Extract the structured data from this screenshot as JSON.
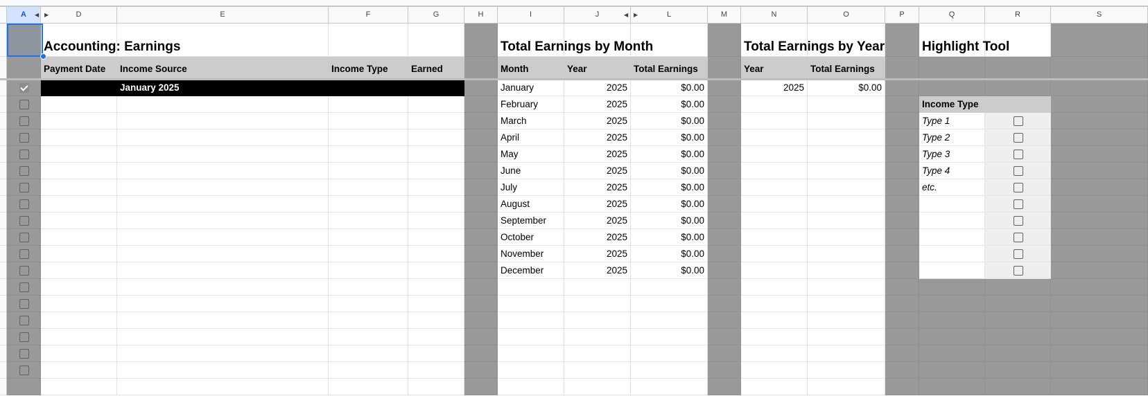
{
  "columns": [
    "A",
    "D",
    "E",
    "F",
    "G",
    "H",
    "I",
    "J",
    "L",
    "M",
    "N",
    "O",
    "P",
    "Q",
    "R",
    "S"
  ],
  "selected_column": "A",
  "sections": {
    "earnings": {
      "title": "Accounting: Earnings",
      "headers": [
        "Payment Date",
        "Income Source",
        "Income Type",
        "Earned"
      ],
      "band_label": "January 2025"
    },
    "by_month": {
      "title": "Total Earnings by Month",
      "headers": [
        "Month",
        "Year",
        "Total Earnings"
      ],
      "rows": [
        [
          "January",
          "2025",
          "$0.00"
        ],
        [
          "February",
          "2025",
          "$0.00"
        ],
        [
          "March",
          "2025",
          "$0.00"
        ],
        [
          "April",
          "2025",
          "$0.00"
        ],
        [
          "May",
          "2025",
          "$0.00"
        ],
        [
          "June",
          "2025",
          "$0.00"
        ],
        [
          "July",
          "2025",
          "$0.00"
        ],
        [
          "August",
          "2025",
          "$0.00"
        ],
        [
          "September",
          "2025",
          "$0.00"
        ],
        [
          "October",
          "2025",
          "$0.00"
        ],
        [
          "November",
          "2025",
          "$0.00"
        ],
        [
          "December",
          "2025",
          "$0.00"
        ]
      ]
    },
    "by_year": {
      "title": "Total Earnings by Year",
      "headers": [
        "Year",
        "Total Earnings"
      ],
      "rows": [
        [
          "2025",
          "$0.00"
        ]
      ]
    },
    "highlight": {
      "title": "Highlight Tool",
      "header": "Income Type",
      "types": [
        "Type 1",
        "Type 2",
        "Type 3",
        "Type 4",
        "etc.",
        "",
        "",
        "",
        "",
        ""
      ]
    }
  },
  "row_checkboxes": [
    true,
    false,
    false,
    false,
    false,
    false,
    false,
    false,
    false,
    false,
    false,
    false,
    false,
    false,
    false,
    false,
    false,
    false
  ]
}
